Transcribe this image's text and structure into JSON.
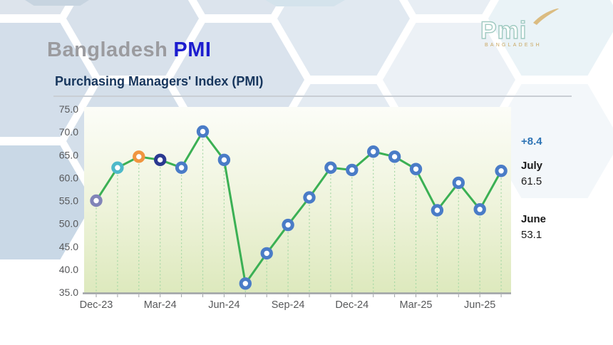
{
  "header": {
    "title_gray": "Bangladesh",
    "title_blue": "PMI",
    "subtitle": "Purchasing Managers' Index (PMI)"
  },
  "logo": {
    "brand": "Pmi",
    "country": "BANGLADESH",
    "brand_color": "#9cc8bf",
    "country_color": "#c9a763",
    "swoosh_color": "#d8b26c"
  },
  "callout": {
    "change": "+8.4",
    "change_color": "#2e74b5",
    "latest_month": "July",
    "latest_value": "61.5",
    "prev_month": "June",
    "prev_value": "53.1"
  },
  "chart_data": {
    "type": "line",
    "title": "Purchasing Managers' Index (PMI)",
    "x": [
      "Dec-23",
      "Jan-24",
      "Feb-24",
      "Mar-24",
      "Apr-24",
      "May-24",
      "Jun-24",
      "Jul-24",
      "Aug-24",
      "Sep-24",
      "Oct-24",
      "Nov-24",
      "Dec-24",
      "Jan-25",
      "Feb-25",
      "Mar-25",
      "Apr-25",
      "May-25",
      "Jun-25",
      "Jul-25"
    ],
    "values": [
      55.0,
      62.2,
      64.6,
      63.9,
      62.2,
      70.1,
      63.9,
      36.9,
      43.5,
      49.7,
      55.7,
      62.2,
      61.7,
      65.7,
      64.6,
      61.9,
      52.9,
      58.9,
      53.1,
      61.5
    ],
    "x_tick_labels": [
      "Dec-23",
      "Mar-24",
      "Jun-24",
      "Sep-24",
      "Dec-24",
      "Mar-25",
      "Jun-25"
    ],
    "x_tick_indices": [
      0,
      3,
      6,
      9,
      12,
      15,
      18
    ],
    "y_ticks": [
      75,
      70,
      65,
      60,
      55,
      50,
      45,
      40,
      35
    ],
    "y_tick_labels": [
      "75.0",
      "70.0",
      "65.0",
      "60.0",
      "55.0",
      "50.0",
      "45.0",
      "40.0",
      "35.0"
    ],
    "ylim": [
      35,
      75
    ],
    "grid": "vertical-dashed",
    "legend": "none",
    "line_color": "#3bb054",
    "grid_line_color": "#a5d8a5",
    "axis_color": "#9fa2a6",
    "tick_label_color": "#57585a",
    "plot_gradient_top": "#fcfdf8",
    "plot_gradient_mid": "#eef3da",
    "plot_gradient_bottom": "#dde9bd",
    "marker_default_color": "#4a7cc7",
    "marker_special_colors": {
      "0": "#8184b8",
      "1": "#4db9c9",
      "2": "#f0953f",
      "3": "#2b3990"
    }
  }
}
